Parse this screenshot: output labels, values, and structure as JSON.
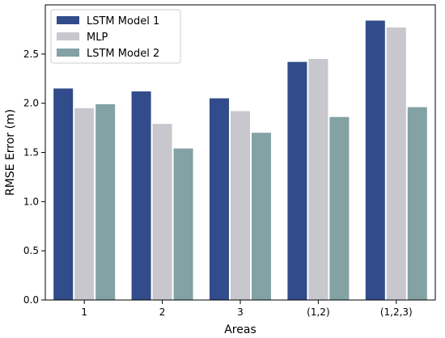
{
  "chart_data": {
    "type": "bar",
    "title": "",
    "xlabel": "Areas",
    "ylabel": "RMSE Error (m)",
    "categories": [
      "1",
      "2",
      "3",
      "(1,2)",
      "(1,2,3)"
    ],
    "ylim": [
      0,
      3.0
    ],
    "yticks": [
      "0.0",
      "0.5",
      "1.0",
      "1.5",
      "2.0",
      "2.5"
    ],
    "grid": false,
    "legend_position": "top-left",
    "series": [
      {
        "name": "LSTM Model 1",
        "color": "#324b8a",
        "values": [
          2.15,
          2.12,
          2.05,
          2.42,
          2.84
        ]
      },
      {
        "name": "MLP",
        "color": "#c7c7cd",
        "values": [
          1.95,
          1.79,
          1.92,
          2.45,
          2.77
        ]
      },
      {
        "name": "LSTM Model 2",
        "color": "#82a2a4",
        "values": [
          1.99,
          1.54,
          1.7,
          1.86,
          1.96
        ]
      }
    ]
  }
}
